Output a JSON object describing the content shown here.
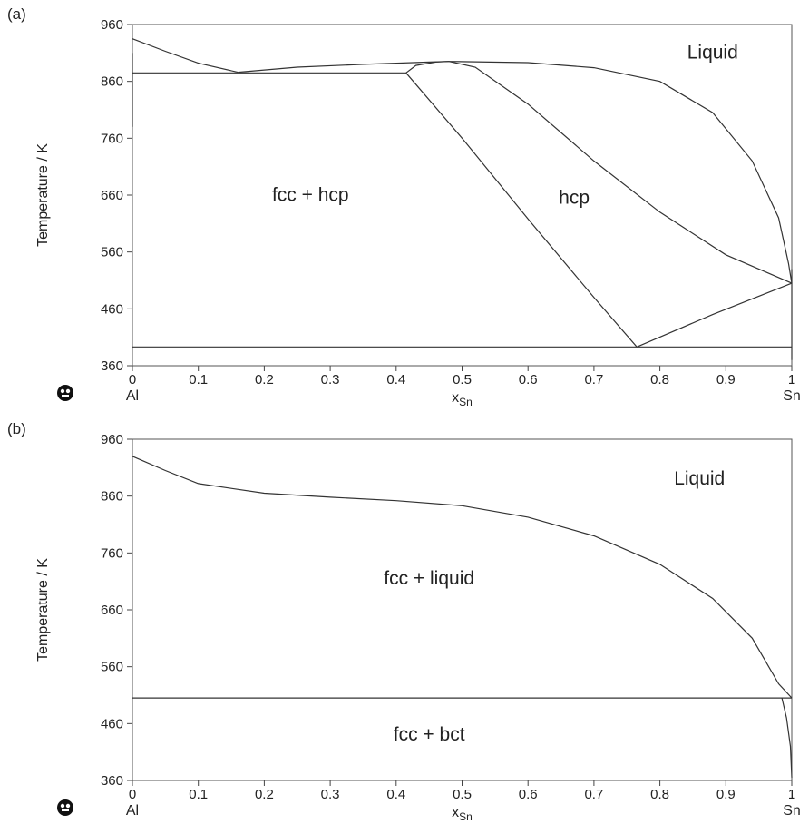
{
  "chart_data": [
    {
      "panel_label": "(a)",
      "type": "line",
      "xlabel": "x",
      "xlabel_sub": "Sn",
      "ylabel": "Temperature / K",
      "xlim": [
        0,
        1
      ],
      "ylim": [
        360,
        960
      ],
      "x_ticks": [
        "0",
        "0.1",
        "0.2",
        "0.3",
        "0.4",
        "0.5",
        "0.6",
        "0.7",
        "0.8",
        "0.9",
        "1"
      ],
      "y_ticks": [
        "960",
        "860",
        "760",
        "660",
        "560",
        "460",
        "360"
      ],
      "endpoint_left": "Al",
      "endpoint_right": "Sn",
      "grid": false,
      "regions": [
        {
          "text": "Liquid",
          "x": 0.88,
          "y": 900
        },
        {
          "text": "fcc + hcp",
          "x": 0.27,
          "y": 650
        },
        {
          "text": "hcp",
          "x": 0.67,
          "y": 645
        }
      ],
      "series": [
        {
          "points": [
            [
              0,
              935
            ],
            [
              0.05,
              913
            ],
            [
              0.1,
              892
            ],
            [
              0.16,
              876
            ]
          ]
        },
        {
          "points": [
            [
              0.16,
              876
            ],
            [
              0.25,
              885
            ],
            [
              0.35,
              890
            ],
            [
              0.45,
              894
            ],
            [
              0.48,
              895
            ]
          ]
        },
        {
          "points": [
            [
              0.48,
              895
            ],
            [
              0.6,
              893
            ],
            [
              0.7,
              884
            ],
            [
              0.8,
              860
            ],
            [
              0.88,
              805
            ],
            [
              0.94,
              720
            ],
            [
              0.98,
              620
            ],
            [
              0.995,
              540
            ],
            [
              1,
              505
            ]
          ]
        },
        {
          "points": [
            [
              0,
              875
            ],
            [
              0.415,
              875
            ]
          ]
        },
        {
          "points": [
            [
              0.415,
              875
            ],
            [
              0.43,
              888
            ],
            [
              0.46,
              894
            ],
            [
              0.48,
              895
            ]
          ]
        },
        {
          "points": [
            [
              0.48,
              895
            ],
            [
              0.52,
              885
            ],
            [
              0.6,
              820
            ],
            [
              0.7,
              720
            ],
            [
              0.8,
              630
            ],
            [
              0.9,
              555
            ],
            [
              1,
              505
            ]
          ]
        },
        {
          "points": [
            [
              0.415,
              875
            ],
            [
              0.5,
              760
            ],
            [
              0.6,
              618
            ],
            [
              0.7,
              480
            ],
            [
              0.765,
              393
            ]
          ]
        },
        {
          "points": [
            [
              0.765,
              393
            ],
            [
              0.88,
              450
            ],
            [
              1,
              505
            ]
          ]
        },
        {
          "points": [
            [
              0,
              393
            ],
            [
              1,
              393
            ]
          ]
        },
        {
          "points": [
            [
              0,
              910
            ],
            [
              0,
              780
            ]
          ]
        },
        {
          "points": [
            [
              1,
              530
            ],
            [
              1,
              370
            ]
          ]
        }
      ]
    },
    {
      "panel_label": "(b)",
      "type": "line",
      "xlabel": "x",
      "xlabel_sub": "Sn",
      "ylabel": "Temperature / K",
      "xlim": [
        0,
        1
      ],
      "ylim": [
        360,
        960
      ],
      "x_ticks": [
        "0",
        "0.1",
        "0.2",
        "0.3",
        "0.4",
        "0.5",
        "0.6",
        "0.7",
        "0.8",
        "0.9",
        "1"
      ],
      "y_ticks": [
        "960",
        "860",
        "760",
        "660",
        "560",
        "460",
        "360"
      ],
      "endpoint_left": "Al",
      "endpoint_right": "Sn",
      "grid": false,
      "regions": [
        {
          "text": "Liquid",
          "x": 0.86,
          "y": 880
        },
        {
          "text": "fcc + liquid",
          "x": 0.45,
          "y": 705
        },
        {
          "text": "fcc + bct",
          "x": 0.45,
          "y": 430
        }
      ],
      "series": [
        {
          "points": [
            [
              0,
              930
            ],
            [
              0.05,
              905
            ],
            [
              0.1,
              882
            ],
            [
              0.2,
              865
            ],
            [
              0.3,
              858
            ],
            [
              0.4,
              852
            ],
            [
              0.5,
              843
            ],
            [
              0.6,
              823
            ],
            [
              0.7,
              790
            ],
            [
              0.8,
              740
            ],
            [
              0.88,
              680
            ],
            [
              0.94,
              610
            ],
            [
              0.98,
              530
            ],
            [
              1,
              505
            ]
          ]
        },
        {
          "points": [
            [
              0,
              505
            ],
            [
              1,
              505
            ]
          ]
        },
        {
          "points": [
            [
              0.985,
              505
            ],
            [
              0.992,
              470
            ],
            [
              0.998,
              420
            ],
            [
              1,
              365
            ]
          ]
        }
      ]
    }
  ]
}
